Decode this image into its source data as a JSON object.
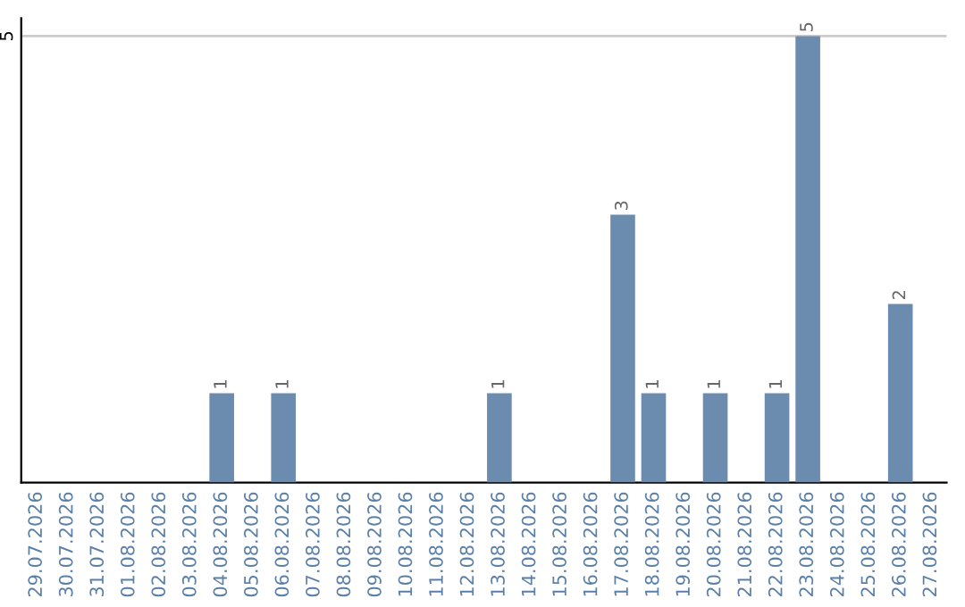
{
  "chart_data": {
    "type": "bar",
    "categories": [
      "29.07.2026",
      "30.07.2026",
      "31.07.2026",
      "01.08.2026",
      "02.08.2026",
      "03.08.2026",
      "04.08.2026",
      "05.08.2026",
      "06.08.2026",
      "07.08.2026",
      "08.08.2026",
      "09.08.2026",
      "10.08.2026",
      "11.08.2026",
      "12.08.2026",
      "13.08.2026",
      "14.08.2026",
      "15.08.2026",
      "16.08.2026",
      "17.08.2026",
      "18.08.2026",
      "19.08.2026",
      "20.08.2026",
      "21.08.2026",
      "22.08.2026",
      "23.08.2026",
      "24.08.2026",
      "25.08.2026",
      "26.08.2026",
      "27.08.2026"
    ],
    "values": [
      0,
      0,
      0,
      0,
      0,
      0,
      1,
      0,
      1,
      0,
      0,
      0,
      0,
      0,
      0,
      1,
      0,
      0,
      0,
      3,
      1,
      0,
      1,
      0,
      1,
      5,
      0,
      0,
      2,
      0
    ],
    "value_labels": [
      null,
      null,
      null,
      null,
      null,
      null,
      "1",
      null,
      "1",
      null,
      null,
      null,
      null,
      null,
      null,
      "1",
      null,
      null,
      null,
      "3",
      "1",
      null,
      "1",
      null,
      "1",
      "5",
      null,
      null,
      "2",
      null
    ],
    "color": "#6b8cae",
    "ylim": [
      0,
      5.2
    ],
    "yticks": [
      5
    ],
    "grid": "y"
  }
}
